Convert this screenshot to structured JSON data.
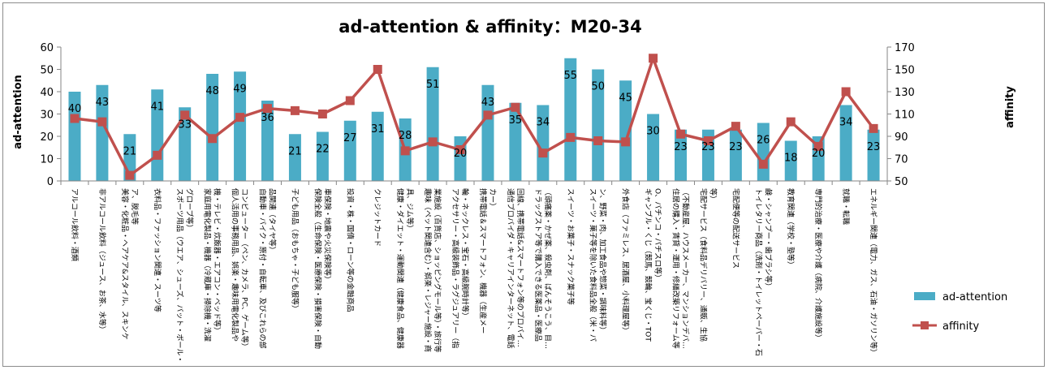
{
  "chart_data": {
    "type": "bar+line",
    "title": "ad-attention & affinity：M20-34",
    "ylabel_left": "ad-attention",
    "ylabel_right": "affinity",
    "ylim_left": [
      0,
      60
    ],
    "yticks_left": [
      "0",
      "10",
      "20",
      "30",
      "40",
      "50",
      "60"
    ],
    "ylim_right": [
      50,
      170
    ],
    "yticks_right": [
      "50",
      "70",
      "90",
      "110",
      "130",
      "150",
      "170"
    ],
    "grid": false,
    "legend_position": "right",
    "colors": {
      "bar": "#4bacc6",
      "line": "#c0504d",
      "axis": "#868686"
    },
    "categories": [
      [
        "アルコール飲料・酒類"
      ],
      [
        "非アルコール飲料（ジュース、お茶、水等）"
      ],
      [
        "美容・化粧品・ヘアケア&スタイル、スキンケ",
        "ア、脱毛等"
      ],
      [
        "衣料品・ファッション関連・スーツ等"
      ],
      [
        "スポーツ用品（ウエア、シューズ、バット・ボール・",
        "グローブ等）"
      ],
      [
        "家庭用電化製品・機器（冷蔵庫・掃除機・洗濯",
        "機・テレビ・炊飯器・エアコン・ベッド等）"
      ],
      [
        "個人活用の事務用品、娯楽・趣味用電化製品や",
        "コンピューター（ペン、カメラ、PC、ゲーム等）"
      ],
      [
        "自動車・バイク・原付・自転車、及びこれらの部",
        "品関連（タイヤ等）"
      ],
      [
        "子ども用品（おもちゃ・子ども服等）"
      ],
      [
        "保険全般（生命保険・医療保険・損害保険・自動",
        "車保険・地震や火災保険等）"
      ],
      [
        "投資・株・国債・ローン等の金融商品"
      ],
      [
        "クレジットカード"
      ],
      [
        "健康・ダイエット・運動関連（健康食品、健康器",
        "具、ジム等）"
      ],
      [
        "趣味（ペット関連含む）・娯楽・レジャー施設・商",
        "業施設（百貨店、ショッピングモール等）・旅行等"
      ],
      [
        "アクセサリー・高級装飾品・ラグジュアリー（指",
        "輪・ネックレス・宝石・高級腕時計等）"
      ],
      [
        "携帯電話＆スマートフォン、機器（生産メー",
        "カー）"
      ],
      [
        "通信プロバイダ・キャリアインターネット、電話",
        "回線、携帯電話&スマートフォン等のプロバイ…"
      ],
      [
        "ドラッグストア等で購入できる医薬品・医療品",
        "（頭痛薬・かぜ薬、殺虫剤、ばんそうこう、目…"
      ],
      [
        "スイーツ・お菓子・スナック菓子等"
      ],
      [
        "スイーツ・菓子等を除いた食料品全般（米・パ",
        "ン、野菜・肉、加工食品や惣菜・調味料等）"
      ],
      [
        "外食店（ファミレス、居酒屋、小料理屋等）"
      ],
      [
        "ギャンブル・くじ（競馬、競輪、宝くじ・TOT",
        "O、パチンコ・パチスロ等）"
      ],
      [
        "住居の購入・賃貸・運用・修繕改築リフォーム等",
        "（不動産屋、ハウスメーカー、マンションデバ…"
      ],
      [
        "宅配サービス（食料品デリバリー、通販、生協",
        "等）"
      ],
      [
        "宅配便等の配送サービス"
      ],
      [
        "トイレタリー商品（洗剤・トイレットペーパー・石",
        "鹸・シャンプー・歯ブラシ等）"
      ],
      [
        "教育関連（学校・塾等）"
      ],
      [
        "専門的治療・医療や介護（病院、介護施設等）"
      ],
      [
        "就職・転職"
      ],
      [
        "エネルギー関連（電力、ガス、石油・ガソリン等）"
      ]
    ],
    "series": [
      {
        "name": "ad-attention",
        "type": "bar",
        "axis": "left",
        "values": [
          40,
          43,
          21,
          41,
          33,
          48,
          49,
          36,
          21,
          22,
          27,
          31,
          28,
          51,
          20,
          43,
          35,
          34,
          55,
          50,
          45,
          30,
          23,
          23,
          23,
          26,
          18,
          20,
          34,
          23
        ],
        "show_labels": true
      },
      {
        "name": "affinity",
        "type": "line",
        "axis": "right",
        "values": [
          106,
          103,
          55,
          73,
          109,
          88,
          107,
          115,
          113,
          110,
          122,
          150,
          77,
          85,
          78,
          109,
          116,
          75,
          89,
          86,
          85,
          160,
          92,
          86,
          99,
          65,
          103,
          81,
          130,
          97
        ],
        "show_labels": false
      }
    ]
  }
}
